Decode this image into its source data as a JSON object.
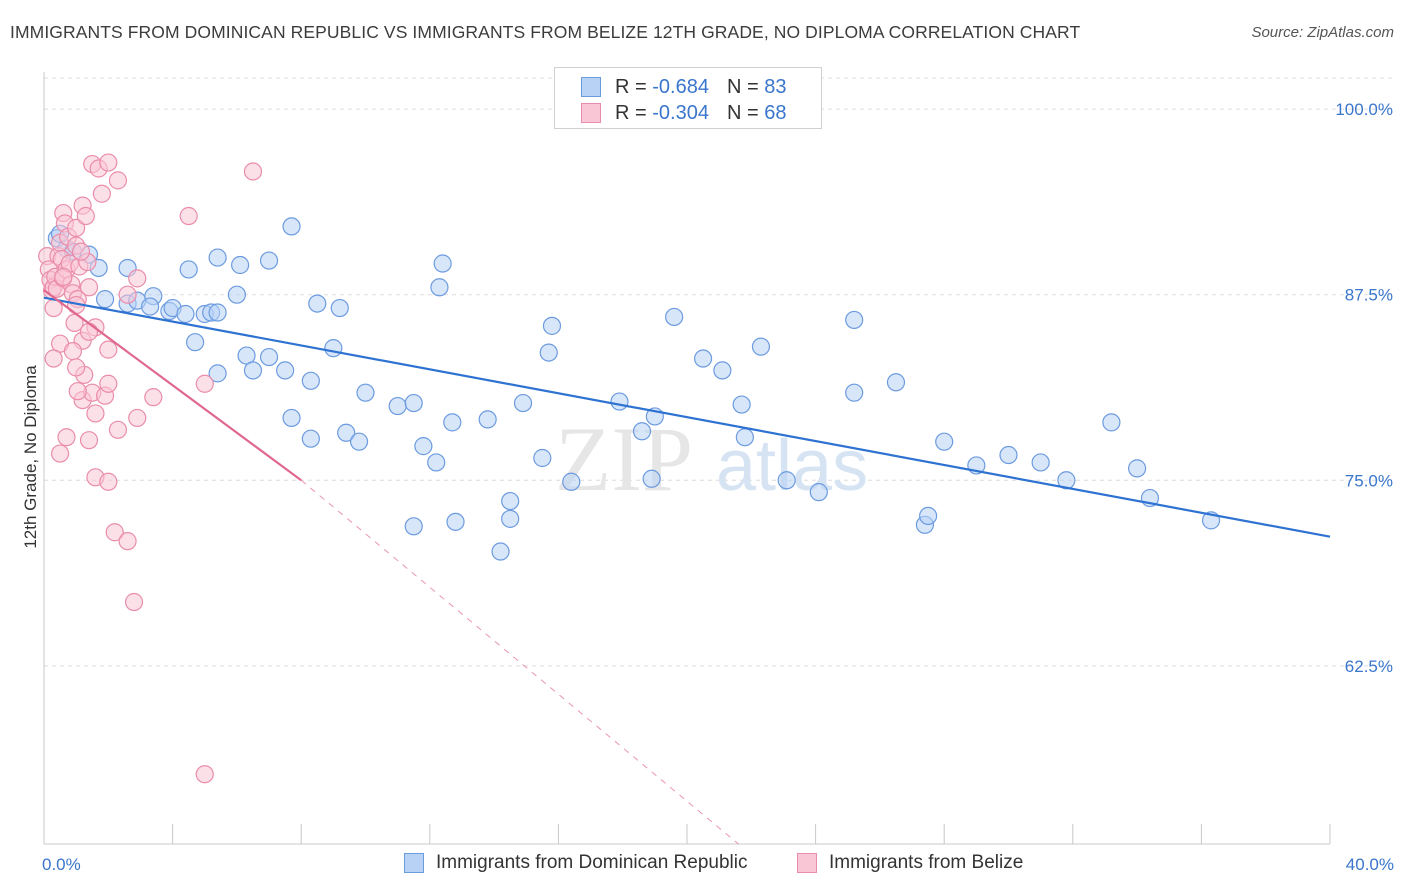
{
  "header": {
    "title": "IMMIGRANTS FROM DOMINICAN REPUBLIC VS IMMIGRANTS FROM BELIZE 12TH GRADE, NO DIPLOMA CORRELATION CHART",
    "source": "Source: ZipAtlas.com"
  },
  "legend": {
    "r_label": "R =",
    "n_label": "N =",
    "series": [
      {
        "name": "Immigrants from Dominican Republic",
        "r": "-0.684",
        "n": "83",
        "fill": "#b8d2f5",
        "stroke": "#6c9be0"
      },
      {
        "name": "Immigrants from Belize",
        "r": "-0.304",
        "n": "68",
        "fill": "#f9c6d5",
        "stroke": "#ea8daa"
      }
    ]
  },
  "watermark": {
    "zip": "ZIP",
    "atlas": "atlas"
  },
  "colors": {
    "blue_line": "#2e72d2",
    "pink_line": "#e0688f",
    "tick_text": "#3a76cc",
    "grid": "#dcdcdc"
  },
  "chart_data": {
    "type": "scatter",
    "title": "IMMIGRANTS FROM DOMINICAN REPUBLIC VS IMMIGRANTS FROM BELIZE 12TH GRADE, NO DIPLOMA CORRELATION CHART",
    "xlabel": "",
    "ylabel": "12th Grade, No Diploma",
    "xlim": [
      0,
      40
    ],
    "ylim": [
      50.5,
      102.5
    ],
    "x_tick_labels": [
      {
        "value": 0,
        "label": "0.0%"
      },
      {
        "value": 40,
        "label": "40.0%"
      }
    ],
    "y_ticks": [
      {
        "value": 100,
        "label": "100.0%"
      },
      {
        "value": 87.5,
        "label": "87.5%"
      },
      {
        "value": 75,
        "label": "75.0%"
      },
      {
        "value": 62.5,
        "label": "62.5%"
      }
    ],
    "x_minor_ticks": [
      4,
      8,
      12,
      16,
      20,
      24,
      28,
      32,
      36,
      40
    ],
    "series": [
      {
        "name": "Immigrants from Dominican Republic",
        "points": [
          [
            0.4,
            91.3
          ],
          [
            0.5,
            91.6
          ],
          [
            0.7,
            90.6
          ],
          [
            0.9,
            90.4
          ],
          [
            1.4,
            90.2
          ],
          [
            1.7,
            89.3
          ],
          [
            2.6,
            89.3
          ],
          [
            1.9,
            87.2
          ],
          [
            2.6,
            86.9
          ],
          [
            2.9,
            87.1
          ],
          [
            3.4,
            87.4
          ],
          [
            3.3,
            86.7
          ],
          [
            3.9,
            86.4
          ],
          [
            4.0,
            86.6
          ],
          [
            4.4,
            86.2
          ],
          [
            5.0,
            86.2
          ],
          [
            5.2,
            86.3
          ],
          [
            6.0,
            87.5
          ],
          [
            4.5,
            89.2
          ],
          [
            4.7,
            84.3
          ],
          [
            5.4,
            90.0
          ],
          [
            6.1,
            89.5
          ],
          [
            7.0,
            89.8
          ],
          [
            5.4,
            82.2
          ],
          [
            5.4,
            86.3
          ],
          [
            6.3,
            83.4
          ],
          [
            6.5,
            82.4
          ],
          [
            7.0,
            83.3
          ],
          [
            7.5,
            82.4
          ],
          [
            7.7,
            92.1
          ],
          [
            9.0,
            83.9
          ],
          [
            8.3,
            81.7
          ],
          [
            9.2,
            86.6
          ],
          [
            8.5,
            86.9
          ],
          [
            7.7,
            79.2
          ],
          [
            8.3,
            77.8
          ],
          [
            9.4,
            78.2
          ],
          [
            9.8,
            77.6
          ],
          [
            10.0,
            80.9
          ],
          [
            11.0,
            80.0
          ],
          [
            11.5,
            80.2
          ],
          [
            11.8,
            77.3
          ],
          [
            12.2,
            76.2
          ],
          [
            11.5,
            71.9
          ],
          [
            12.3,
            88.0
          ],
          [
            12.4,
            89.6
          ],
          [
            12.7,
            78.9
          ],
          [
            12.8,
            72.2
          ],
          [
            13.8,
            79.1
          ],
          [
            14.2,
            70.2
          ],
          [
            14.5,
            73.6
          ],
          [
            14.9,
            80.2
          ],
          [
            15.7,
            83.6
          ],
          [
            15.8,
            85.4
          ],
          [
            14.5,
            72.4
          ],
          [
            15.5,
            76.5
          ],
          [
            16.4,
            74.9
          ],
          [
            17.9,
            80.3
          ],
          [
            18.6,
            78.3
          ],
          [
            18.9,
            75.1
          ],
          [
            19.0,
            79.3
          ],
          [
            19.6,
            86.0
          ],
          [
            20.5,
            83.2
          ],
          [
            21.1,
            82.4
          ],
          [
            21.7,
            80.1
          ],
          [
            21.8,
            77.9
          ],
          [
            22.3,
            84.0
          ],
          [
            23.1,
            75.0
          ],
          [
            24.1,
            74.2
          ],
          [
            25.2,
            85.8
          ],
          [
            25.2,
            80.9
          ],
          [
            26.5,
            81.6
          ],
          [
            27.4,
            72.0
          ],
          [
            27.5,
            72.6
          ],
          [
            28.0,
            77.6
          ],
          [
            29.0,
            76.0
          ],
          [
            30.0,
            76.7
          ],
          [
            31.0,
            76.2
          ],
          [
            31.8,
            75.0
          ],
          [
            33.2,
            78.9
          ],
          [
            34.0,
            75.8
          ],
          [
            34.4,
            73.8
          ],
          [
            36.3,
            72.3
          ]
        ]
      },
      {
        "name": "Immigrants from Belize",
        "points": [
          [
            0.1,
            90.1
          ],
          [
            0.15,
            89.2
          ],
          [
            0.2,
            88.5
          ],
          [
            0.25,
            87.8
          ],
          [
            0.3,
            86.6
          ],
          [
            0.3,
            88.0
          ],
          [
            0.35,
            88.7
          ],
          [
            0.4,
            87.9
          ],
          [
            0.45,
            90.1
          ],
          [
            0.5,
            91.0
          ],
          [
            0.55,
            89.9
          ],
          [
            0.6,
            88.6
          ],
          [
            0.6,
            93.0
          ],
          [
            0.65,
            92.3
          ],
          [
            0.7,
            89.2
          ],
          [
            0.75,
            91.4
          ],
          [
            0.8,
            89.6
          ],
          [
            0.85,
            88.2
          ],
          [
            0.9,
            87.6
          ],
          [
            0.95,
            85.6
          ],
          [
            1.0,
            92.0
          ],
          [
            1.0,
            90.8
          ],
          [
            1.05,
            87.2
          ],
          [
            1.1,
            89.4
          ],
          [
            1.2,
            93.5
          ],
          [
            1.3,
            92.8
          ],
          [
            1.35,
            89.7
          ],
          [
            1.4,
            88.0
          ],
          [
            1.5,
            96.3
          ],
          [
            1.6,
            85.3
          ],
          [
            1.7,
            96.0
          ],
          [
            1.8,
            94.3
          ],
          [
            2.0,
            96.4
          ],
          [
            2.3,
            95.2
          ],
          [
            1.2,
            84.4
          ],
          [
            1.4,
            85.0
          ],
          [
            0.5,
            84.2
          ],
          [
            0.3,
            83.2
          ],
          [
            0.9,
            83.7
          ],
          [
            1.25,
            82.1
          ],
          [
            1.2,
            80.4
          ],
          [
            1.5,
            80.9
          ],
          [
            1.6,
            79.5
          ],
          [
            1.9,
            80.7
          ],
          [
            1.0,
            82.6
          ],
          [
            2.0,
            83.8
          ],
          [
            2.0,
            81.5
          ],
          [
            2.6,
            87.5
          ],
          [
            2.9,
            88.6
          ],
          [
            2.9,
            79.2
          ],
          [
            2.3,
            78.4
          ],
          [
            3.4,
            80.6
          ],
          [
            1.4,
            77.7
          ],
          [
            1.6,
            75.2
          ],
          [
            2.0,
            74.9
          ],
          [
            2.2,
            71.5
          ],
          [
            2.6,
            70.9
          ],
          [
            0.5,
            76.8
          ],
          [
            1.05,
            81.0
          ],
          [
            0.7,
            77.9
          ],
          [
            0.6,
            88.7
          ],
          [
            1.0,
            86.8
          ],
          [
            1.15,
            90.4
          ],
          [
            4.5,
            92.8
          ],
          [
            5.0,
            81.5
          ],
          [
            6.5,
            95.8
          ],
          [
            2.8,
            66.8
          ],
          [
            5.0,
            55.2
          ]
        ]
      }
    ],
    "trendlines": [
      {
        "series": "Immigrants from Dominican Republic",
        "x_start": 0,
        "y_start": 87.3,
        "x_end": 40,
        "y_end": 71.2,
        "style": "solid"
      },
      {
        "series": "Immigrants from Belize",
        "x_start": 0,
        "y_start": 87.8,
        "x_end": 8.0,
        "y_end": 75.0,
        "style": "solid"
      },
      {
        "series": "Immigrants from Belize",
        "x_start": 8.0,
        "y_start": 75.0,
        "x_end": 21.6,
        "y_end": 50.5,
        "style": "dashed"
      }
    ]
  }
}
